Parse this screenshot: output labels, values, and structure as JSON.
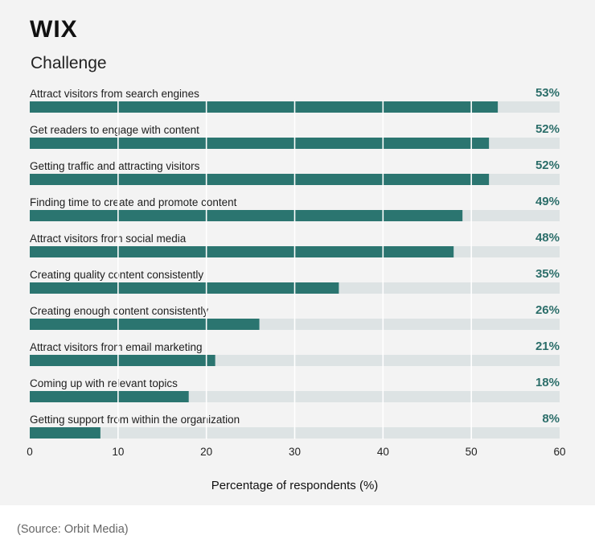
{
  "brand": {
    "logo_text": "WIX"
  },
  "colors": {
    "bar": "#2b7570",
    "track": "#dde3e4",
    "value_text": "#2c6e6a",
    "card_bg": "#f3f3f3"
  },
  "chart_data": {
    "type": "bar",
    "orientation": "horizontal",
    "title": "Challenge",
    "categories": [
      "Attract visitors from search engines",
      "Get readers to engage with content",
      "Getting traffic and attracting visitors",
      "Finding time to create and promote content",
      "Attract visitors from social media",
      "Creating quality content consistently",
      "Creating enough content consistently",
      "Attract visitors from email marketing",
      "Coming up with relevant topics",
      "Getting support from within the organization"
    ],
    "values": [
      53,
      52,
      52,
      49,
      48,
      35,
      26,
      21,
      18,
      8
    ],
    "value_labels": [
      "53%",
      "52%",
      "52%",
      "49%",
      "48%",
      "35%",
      "26%",
      "21%",
      "18%",
      "8%"
    ],
    "xlabel": "Percentage of respondents (%)",
    "xlim": [
      0,
      60
    ],
    "xticks": [
      0,
      10,
      20,
      30,
      40,
      50,
      60
    ],
    "grid": true
  },
  "source": "(Source: Orbit Media)"
}
